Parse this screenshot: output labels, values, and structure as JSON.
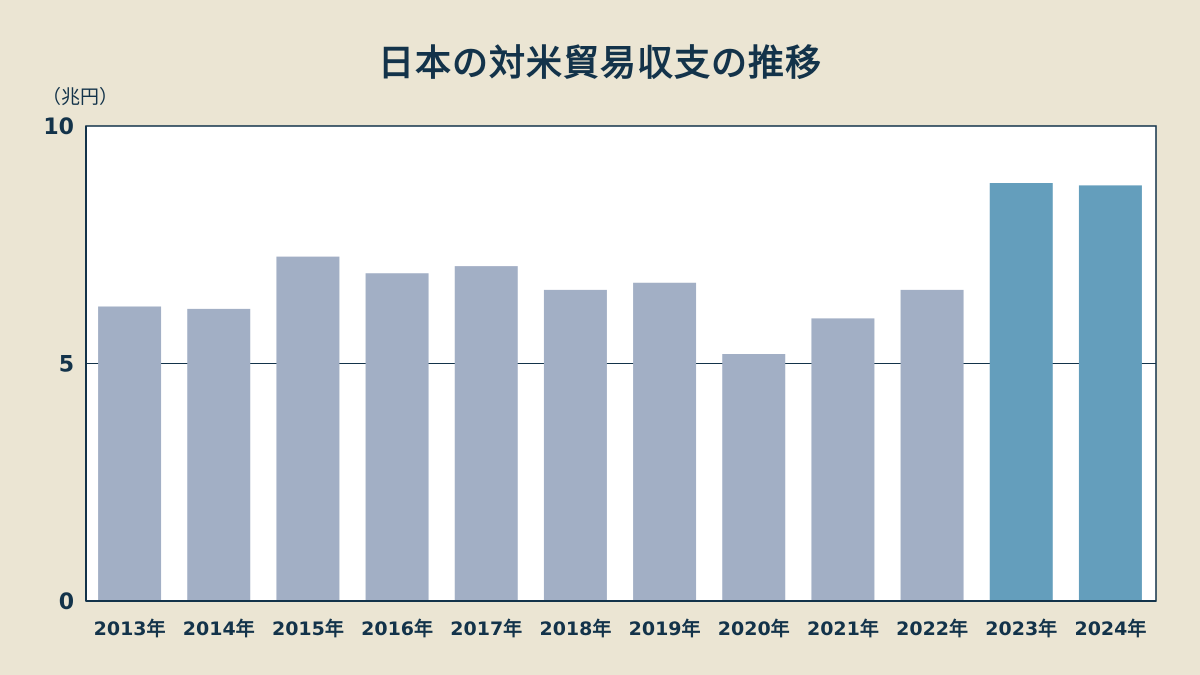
{
  "chart_data": {
    "type": "bar",
    "title": "日本の対米貿易収支の推移",
    "ylabel": "（兆円）",
    "xlabel": "",
    "categories": [
      "2013年",
      "2014年",
      "2015年",
      "2016年",
      "2017年",
      "2018年",
      "2019年",
      "2020年",
      "2021年",
      "2022年",
      "2023年",
      "2024年"
    ],
    "values": [
      6.2,
      6.15,
      7.25,
      6.9,
      7.05,
      6.55,
      6.7,
      5.2,
      5.95,
      6.55,
      8.8,
      8.75
    ],
    "ylim": [
      0,
      10
    ],
    "yticks": [
      0,
      5,
      10
    ],
    "grid": true,
    "colors": {
      "background": "#ebe5d3",
      "plot_background": "#ffffff",
      "bar_default": "#a2afc5",
      "bar_highlight": "#649ebc",
      "text": "#13334a",
      "axis": "#13334a"
    },
    "highlight_categories": [
      "2023年",
      "2024年"
    ]
  }
}
